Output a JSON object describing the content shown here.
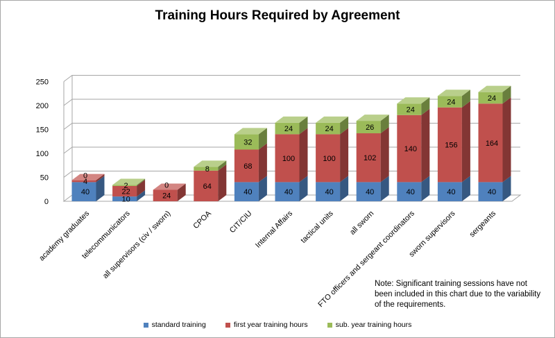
{
  "chart_data": {
    "type": "bar",
    "stacked": true,
    "title": "Training Hours Required by Agreement",
    "categories": [
      "academy graduates",
      "telecommunicators",
      "all supervisors (civ / sworn)",
      "CPOA",
      "CIT/CIU",
      "Internal Affairs",
      "tactical units",
      "all sworn",
      "FTO officers and sergeant coordinators",
      "sworn supervisors",
      "sergeants"
    ],
    "series": [
      {
        "name": "standard training",
        "color": "#4f81bd",
        "values": [
          40,
          10,
          0,
          0,
          40,
          40,
          40,
          40,
          40,
          40,
          40
        ]
      },
      {
        "name": "first year training hours",
        "color": "#c0504d",
        "values": [
          4,
          22,
          24,
          64,
          68,
          100,
          100,
          102,
          140,
          156,
          164
        ]
      },
      {
        "name": "sub. year training hours",
        "color": "#9bbb59",
        "values": [
          0,
          2,
          0,
          8,
          32,
          24,
          24,
          26,
          24,
          24,
          24
        ]
      }
    ],
    "data_labels": [
      [
        "40",
        "4",
        "0"
      ],
      [
        "10",
        "22",
        "2"
      ],
      [
        "",
        "24",
        "0"
      ],
      [
        "",
        "64",
        "8"
      ],
      [
        "40",
        "68",
        "32"
      ],
      [
        "40",
        "100",
        "24"
      ],
      [
        "40",
        "100",
        "24"
      ],
      [
        "40",
        "102",
        "26"
      ],
      [
        "40",
        "140",
        "24"
      ],
      [
        "40",
        "156",
        "24"
      ],
      [
        "40",
        "164",
        "24"
      ]
    ],
    "y_ticks": [
      "0",
      "50",
      "100",
      "150",
      "200",
      "250"
    ],
    "ylim": [
      0,
      250
    ],
    "grid": true,
    "legend_position": "bottom"
  },
  "note": "Note:  Significant training sessions have not been included in this chart due to the variability of the requirements."
}
